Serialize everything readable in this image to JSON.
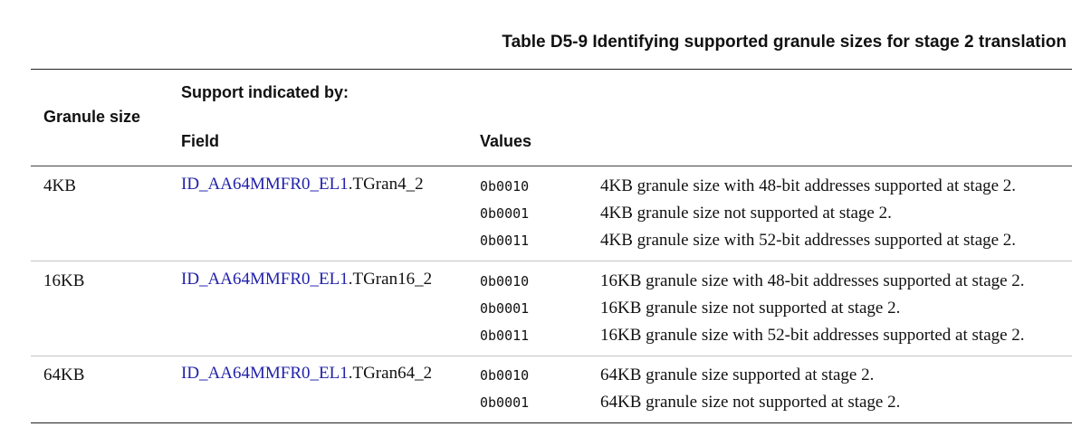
{
  "caption": "Table D5-9 Identifying supported granule sizes for stage 2 translation",
  "headers": {
    "granule_size": "Granule size",
    "support_indicated_by": "Support indicated by:",
    "field": "Field",
    "values": "Values"
  },
  "rows": [
    {
      "size": "4KB",
      "field_link": "ID_AA64MMFR0_EL1",
      "field_suffix": ".TGran4_2",
      "values": [
        {
          "code": "0b0010",
          "desc": "4KB granule size with 48-bit addresses supported at stage 2."
        },
        {
          "code": "0b0001",
          "desc": "4KB granule size not supported at stage 2."
        },
        {
          "code": "0b0011",
          "desc": "4KB granule size with 52-bit addresses supported at stage 2."
        }
      ]
    },
    {
      "size": "16KB",
      "field_link": "ID_AA64MMFR0_EL1",
      "field_suffix": ".TGran16_2",
      "values": [
        {
          "code": "0b0010",
          "desc": "16KB granule size with 48-bit addresses supported at stage 2."
        },
        {
          "code": "0b0001",
          "desc": "16KB granule size not supported at stage 2."
        },
        {
          "code": "0b0011",
          "desc": "16KB granule size with 52-bit addresses supported at stage 2."
        }
      ]
    },
    {
      "size": "64KB",
      "field_link": "ID_AA64MMFR0_EL1",
      "field_suffix": ".TGran64_2",
      "values": [
        {
          "code": "0b0010",
          "desc": "64KB granule size supported at stage 2."
        },
        {
          "code": "0b0001",
          "desc": "64KB granule size not supported at stage 2."
        }
      ]
    }
  ]
}
